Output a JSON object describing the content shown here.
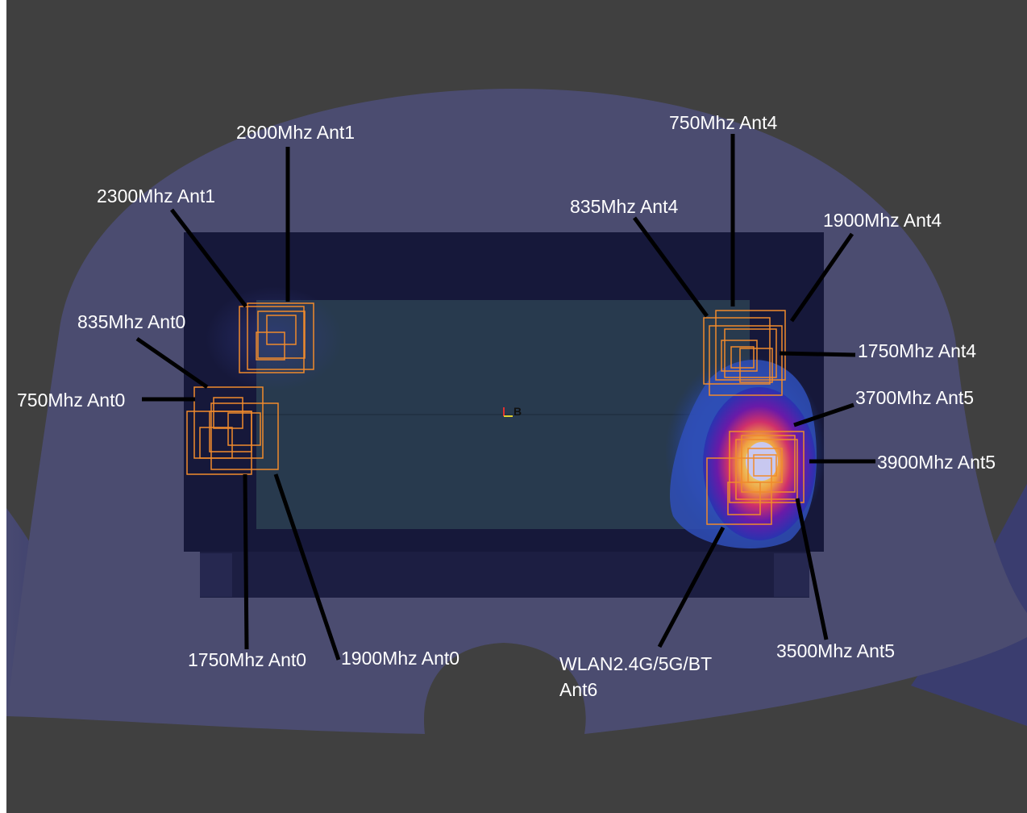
{
  "view": {
    "background_color": "#404040",
    "phantom_color": "#4b4c70",
    "device_color": "#16183a",
    "board_color": "#283a4e",
    "hotspot_box_color": "#f08a2c",
    "origin_marker_text": "B"
  },
  "labels": {
    "ant1_2600": "2600Mhz Ant1",
    "ant1_2300": "2300Mhz Ant1",
    "ant0_835": "835Mhz Ant0",
    "ant0_750": "750Mhz Ant0",
    "ant0_1750": "1750Mhz Ant0",
    "ant0_1900": "1900Mhz Ant0",
    "ant4_750": "750Mhz Ant4",
    "ant4_835": "835Mhz Ant4",
    "ant4_1900": "1900Mhz Ant4",
    "ant4_1750": "1750Mhz Ant4",
    "ant5_3700": "3700Mhz Ant5",
    "ant5_3900": "3900Mhz Ant5",
    "ant5_3500": "3500Mhz Ant5",
    "ant6_line1": "WLAN2.4G/5G/BT",
    "ant6_line2": "Ant6"
  }
}
